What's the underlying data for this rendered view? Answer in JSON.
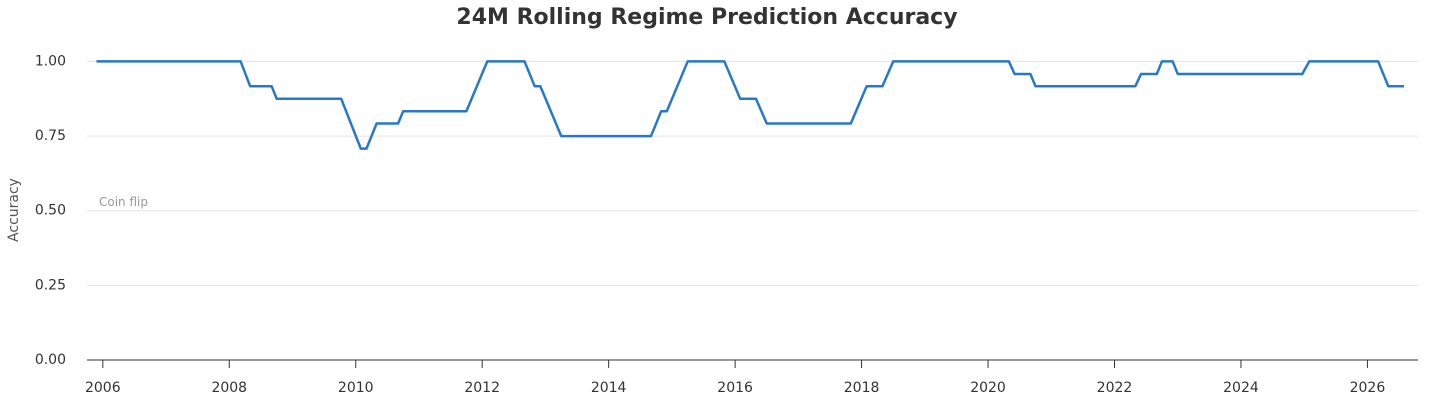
{
  "chart_data": {
    "type": "line",
    "title": "24M Rolling Regime Prediction Accuracy",
    "y_label": "Accuracy",
    "annotation": "Coin flip",
    "x": [
      2005.9,
      2008.18,
      2008.33,
      2008.67,
      2008.75,
      2009.77,
      2010.08,
      2010.17,
      2010.33,
      2010.67,
      2010.75,
      2011.75,
      2012.08,
      2012.67,
      2012.83,
      2012.92,
      2013.25,
      2014.67,
      2014.83,
      2014.92,
      2015.25,
      2015.83,
      2016.08,
      2016.33,
      2016.5,
      2017.83,
      2018.08,
      2018.33,
      2018.5,
      2020.33,
      2020.42,
      2020.67,
      2020.75,
      2022.33,
      2022.42,
      2022.67,
      2022.75,
      2022.92,
      2023.0,
      2024.97,
      2025.08,
      2026.17,
      2026.33,
      2026.58
    ],
    "series": [
      {
        "name": "Accuracy",
        "color": "#2878c8",
        "values": [
          1.0,
          1.0,
          0.917,
          0.917,
          0.875,
          0.875,
          0.708,
          0.708,
          0.792,
          0.792,
          0.833,
          0.833,
          1.0,
          1.0,
          0.917,
          0.917,
          0.75,
          0.75,
          0.833,
          0.833,
          1.0,
          1.0,
          0.875,
          0.875,
          0.792,
          0.792,
          0.917,
          0.917,
          1.0,
          1.0,
          0.958,
          0.958,
          0.917,
          0.917,
          0.958,
          0.958,
          1.0,
          1.0,
          0.958,
          0.958,
          1.0,
          1.0,
          0.917,
          0.917
        ]
      }
    ],
    "xlim": [
      2005.75,
      2026.8
    ],
    "xticks": [
      2006,
      2008,
      2010,
      2012,
      2014,
      2016,
      2018,
      2020,
      2022,
      2024,
      2026
    ],
    "ylim": [
      0,
      1.05
    ],
    "yticks": [
      {
        "value": 0,
        "label": "0.00"
      },
      {
        "value": 0.25,
        "label": "0.25"
      },
      {
        "value": 0.5,
        "label": "0.50"
      },
      {
        "value": 0.75,
        "label": "0.75"
      },
      {
        "value": 1,
        "label": "1.00"
      }
    ],
    "grid": true
  }
}
